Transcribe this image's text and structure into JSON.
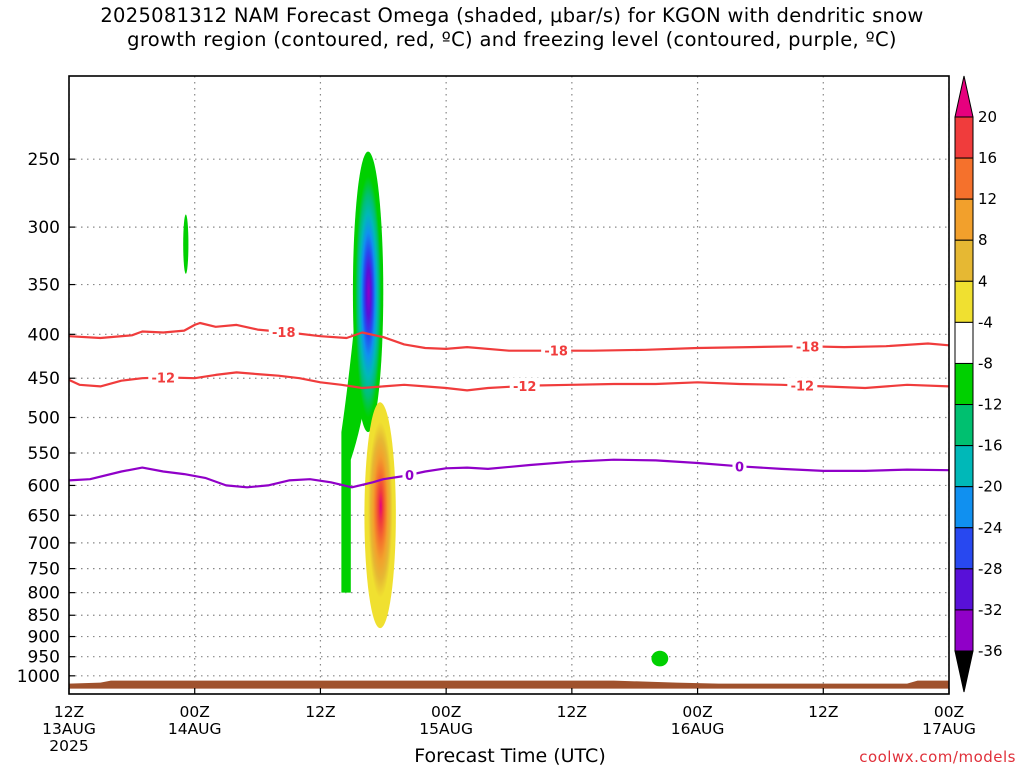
{
  "title_line1": "2025081312 NAM Forecast Omega (shaded, μbar/s) for KGON with dendritic snow",
  "title_line2": "growth region (contoured, red, ºC) and freezing level (contoured, purple, ºC)",
  "credit": "coolwx.com/models",
  "chart_data": {
    "type": "heatmap",
    "xlabel": "Forecast Time (UTC)",
    "ylabel": "",
    "x_unit": "hours since 2025-08-13 12Z",
    "xlim": [
      0,
      84
    ],
    "ylim": [
      1050,
      200
    ],
    "y_scale": "log-pressure",
    "x_ticks": [
      {
        "hour": 0,
        "lines": [
          "12Z",
          "13AUG",
          "2025"
        ]
      },
      {
        "hour": 12,
        "lines": [
          "00Z",
          "14AUG"
        ]
      },
      {
        "hour": 24,
        "lines": [
          "12Z"
        ]
      },
      {
        "hour": 36,
        "lines": [
          "00Z",
          "15AUG"
        ]
      },
      {
        "hour": 48,
        "lines": [
          "12Z"
        ]
      },
      {
        "hour": 60,
        "lines": [
          "00Z",
          "16AUG"
        ]
      },
      {
        "hour": 72,
        "lines": [
          "12Z"
        ]
      },
      {
        "hour": 84,
        "lines": [
          "00Z",
          "17AUG"
        ]
      }
    ],
    "y_ticks": [
      250,
      300,
      350,
      400,
      450,
      500,
      550,
      600,
      650,
      700,
      750,
      800,
      850,
      900,
      950,
      1000
    ],
    "grid": true,
    "colorbar": {
      "labels": [
        "20",
        "16",
        "12",
        "8",
        "4",
        "-4",
        "-8",
        "-12",
        "-16",
        "-20",
        "-24",
        "-28",
        "-32",
        "-36"
      ],
      "colors": [
        "#e6007e",
        "#f03c3c",
        "#f5712c",
        "#f2a02c",
        "#e6b833",
        "#f0e030",
        "#ffffff",
        "#00d000",
        "#00c070",
        "#00b8b8",
        "#1090f0",
        "#2848f0",
        "#5810d8",
        "#9000c8",
        "#9c9c9c",
        "#000000"
      ]
    },
    "omega_features": [
      {
        "name": "ascent_column_upper",
        "time_hours": [
          26.0,
          28.6
        ],
        "pressure_hpa": [
          245,
          800
        ],
        "min_value": -30
      },
      {
        "name": "descent_column",
        "time_hours": [
          28.2,
          31.2
        ],
        "pressure_hpa": [
          480,
          880
        ],
        "max_value": 20
      },
      {
        "name": "small_ascent_left",
        "time_hours": [
          10.9,
          11.4
        ],
        "pressure_hpa": [
          290,
          340
        ],
        "min_value": -8
      },
      {
        "name": "small_ascent_right",
        "time_hours": [
          55.6,
          57.2
        ],
        "pressure_hpa": [
          935,
          975
        ],
        "min_value": -8
      }
    ],
    "contours": [
      {
        "name": "-18",
        "color": "#f03c3c",
        "x": [
          0,
          3,
          6,
          7,
          9,
          11,
          12,
          12.5,
          14,
          16,
          18,
          21,
          24,
          26.5,
          28,
          30,
          32,
          34,
          36,
          38,
          42,
          46,
          50,
          55,
          60,
          65,
          70,
          74,
          78,
          82,
          84
        ],
        "y": [
          402,
          404,
          401,
          397,
          398,
          396,
          390,
          388,
          392,
          390,
          395,
          398,
          402,
          404,
          398,
          403,
          411,
          415,
          416,
          414,
          418,
          418,
          418,
          417,
          415,
          414,
          413,
          414,
          413,
          410,
          412
        ],
        "labels": [
          {
            "x": 20.5,
            "text": "-18"
          },
          {
            "x": 46.5,
            "text": "-18"
          },
          {
            "x": 70.5,
            "text": "-18"
          }
        ]
      },
      {
        "name": "-12",
        "color": "#f03c3c",
        "x": [
          0,
          1,
          3,
          5,
          7,
          9,
          12,
          14,
          16,
          18,
          20,
          22,
          24,
          26,
          28,
          30,
          32,
          34,
          36,
          38,
          40,
          44,
          48,
          52,
          56,
          60,
          64,
          68,
          72,
          76,
          80,
          84
        ],
        "y": [
          452,
          458,
          460,
          453,
          450,
          449,
          450,
          446,
          443,
          445,
          447,
          450,
          455,
          458,
          462,
          460,
          458,
          460,
          462,
          465,
          462,
          459,
          458,
          457,
          457,
          455,
          457,
          458,
          460,
          462,
          458,
          460
        ],
        "labels": [
          {
            "x": 9,
            "text": "-12"
          },
          {
            "x": 43.5,
            "text": "-12"
          },
          {
            "x": 70,
            "text": "-12"
          }
        ]
      },
      {
        "name": "0",
        "color": "#9000c8",
        "x": [
          0,
          2,
          5,
          7,
          9,
          11,
          13,
          15,
          17,
          19,
          21,
          23,
          25,
          27,
          29,
          30,
          32,
          34,
          36,
          38,
          40,
          44,
          48,
          52,
          56,
          60,
          64,
          68,
          72,
          76,
          80,
          84
        ],
        "y": [
          592,
          590,
          578,
          572,
          578,
          582,
          588,
          600,
          603,
          600,
          592,
          590,
          595,
          603,
          595,
          590,
          585,
          578,
          573,
          572,
          574,
          568,
          563,
          560,
          561,
          565,
          570,
          574,
          577,
          577,
          575,
          576
        ],
        "labels": [
          {
            "x": 32.5,
            "text": "0"
          },
          {
            "x": 64,
            "text": "0"
          }
        ]
      }
    ],
    "terrain": {
      "color": "#a0522d",
      "surface_pressure_hpa": 1013,
      "bottom_pressure_hpa": 1035
    }
  }
}
